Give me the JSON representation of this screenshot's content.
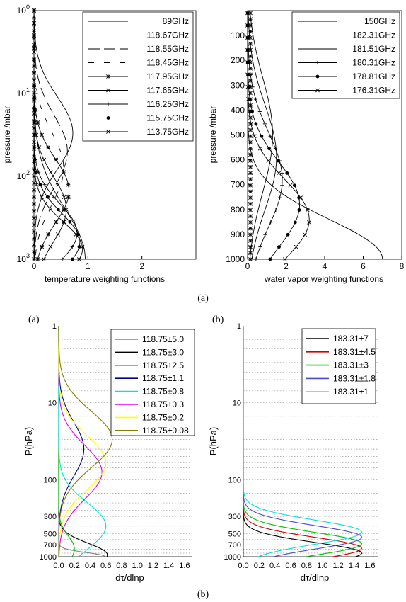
{
  "captions": {
    "top": "(a)",
    "bottom": "(b)",
    "panel_c": "(a)",
    "panel_d": "(b)"
  },
  "chart_data": [
    {
      "id": "A",
      "type": "line",
      "xlabel": "temperature weighting functions",
      "ylabel": "pressure /mbar",
      "xlim": [
        0,
        3
      ],
      "ylim": [
        1,
        1000
      ],
      "yscale": "log",
      "yinverted": true,
      "xticks": [
        "0",
        "1",
        "2"
      ],
      "yticks": [
        {
          "v": 1,
          "b": "10",
          "e": "0"
        },
        {
          "v": 10,
          "b": "10",
          "e": "1"
        },
        {
          "v": 100,
          "b": "10",
          "e": "2"
        },
        {
          "v": 1000,
          "b": "10",
          "e": "3"
        }
      ],
      "legend_position": "top-right",
      "grid": false,
      "series": [
        {
          "name": "89GHz",
          "marker": "none",
          "dash": "",
          "peak_p": 1000,
          "peak_v": 0.95,
          "width": 1.4
        },
        {
          "name": "118.67GHz",
          "marker": "none",
          "dash": "",
          "peak_p": 30,
          "peak_v": 0.72,
          "width": 1.0
        },
        {
          "name": "118.55GHz",
          "marker": "none",
          "dash": "16,6",
          "peak_p": 50,
          "peak_v": 0.62,
          "width": 1.0
        },
        {
          "name": "118.45GHz",
          "marker": "none",
          "dash": "8,14",
          "peak_p": 80,
          "peak_v": 0.55,
          "width": 1.0
        },
        {
          "name": "117.95GHz",
          "marker": "asterisk",
          "dash": "",
          "peak_p": 150,
          "peak_v": 0.65,
          "width": 0.9
        },
        {
          "name": "117.65GHz",
          "marker": "x",
          "dash": "",
          "peak_p": 250,
          "peak_v": 0.6,
          "width": 0.9
        },
        {
          "name": "116.25GHz",
          "marker": "plus",
          "dash": "",
          "peak_p": 480,
          "peak_v": 0.8,
          "width": 0.8
        },
        {
          "name": "115.75GHz",
          "marker": "dot",
          "dash": "",
          "peak_p": 620,
          "peak_v": 0.85,
          "width": 0.8
        },
        {
          "name": "113.75GHz",
          "marker": "x",
          "dash": "",
          "peak_p": 750,
          "peak_v": 0.9,
          "width": 0.75
        }
      ]
    },
    {
      "id": "B",
      "type": "line",
      "xlabel": "water vapor weighting functions",
      "ylabel": "pressure /mbar",
      "xlim": [
        0,
        8
      ],
      "ylim": [
        0,
        1000
      ],
      "yscale": "linear",
      "yinverted": true,
      "xticks": [
        "0",
        "2",
        "4",
        "6",
        "8"
      ],
      "yticks": [
        "100",
        "200",
        "300",
        "400",
        "500",
        "600",
        "700",
        "800",
        "900",
        "1000"
      ],
      "legend_position": "top-right",
      "grid": false,
      "series": [
        {
          "name": "150GHz",
          "marker": "none",
          "peak_p": 1000,
          "peak_v": 7.0,
          "width": 160
        },
        {
          "name": "182.31GHz",
          "marker": "none",
          "peak_p": 500,
          "peak_v": 1.3,
          "width": 230
        },
        {
          "name": "181.51GHz",
          "marker": "none",
          "peak_p": 590,
          "peak_v": 1.5,
          "width": 210
        },
        {
          "name": "180.31GHz",
          "marker": "plus",
          "peak_p": 680,
          "peak_v": 1.8,
          "width": 190
        },
        {
          "name": "178.81GHz",
          "marker": "dot",
          "peak_p": 780,
          "peak_v": 2.7,
          "width": 170
        },
        {
          "name": "176.31GHz",
          "marker": "x",
          "peak_p": 840,
          "peak_v": 3.2,
          "width": 160
        }
      ]
    },
    {
      "id": "C",
      "type": "line",
      "xlabel": "dτ/dlnp",
      "ylabel": "P(hPa)",
      "xlim": [
        0,
        1.7
      ],
      "ylim": [
        1,
        1000
      ],
      "yscale": "log",
      "yinverted": true,
      "xticks": [
        "0.0",
        "0.2",
        "0.4",
        "0.6",
        "0.8",
        "1.0",
        "1.2",
        "1.4",
        "1.6"
      ],
      "yticks": [
        "1",
        "10",
        "100",
        "300",
        "500",
        "700",
        "1000"
      ],
      "legend_position": "top-right",
      "grid": "dotted horizontal",
      "series": [
        {
          "name": "118.75±5.0",
          "color": "#808080",
          "peak_p": 1000,
          "peak_v": 0.6,
          "width": 0.12
        },
        {
          "name": "118.75±3.0",
          "color": "#000000",
          "peak_p": 950,
          "peak_v": 0.62,
          "width": 0.35
        },
        {
          "name": "118.75±2.5",
          "color": "#00c000",
          "peak_p": 800,
          "peak_v": 0.2,
          "width": 0.4
        },
        {
          "name": "118.75±1.1",
          "color": "#00008b",
          "peak_p": 40,
          "peak_v": 0.32,
          "width": 0.8
        },
        {
          "name": "118.75±0.8",
          "color": "#00e0e0",
          "peak_p": 400,
          "peak_v": 0.6,
          "width": 0.7
        },
        {
          "name": "118.75±0.3",
          "color": "#e000e0",
          "peak_p": 80,
          "peak_v": 0.55,
          "width": 0.8
        },
        {
          "name": "118.75±0.2",
          "color": "#ffff00",
          "peak_p": 60,
          "peak_v": 0.6,
          "width": 0.8
        },
        {
          "name": "118.75±0.08",
          "color": "#808000",
          "peak_p": 30,
          "peak_v": 0.68,
          "width": 0.85
        }
      ]
    },
    {
      "id": "D",
      "type": "line",
      "xlabel": "dτ/dlnp",
      "ylabel": "P(hPa)",
      "xlim": [
        0,
        1.7
      ],
      "ylim": [
        1,
        1000
      ],
      "yscale": "log",
      "yinverted": true,
      "xticks": [
        "0.0",
        "0.2",
        "0.4",
        "0.6",
        "0.8",
        "1.0",
        "1.2",
        "1.4",
        "1.6"
      ],
      "yticks": [
        "1",
        "10",
        "100",
        "300",
        "500",
        "700",
        "1000"
      ],
      "legend_position": "top-right",
      "grid": "dotted horizontal",
      "series": [
        {
          "name": "183.31±7",
          "color": "#000000",
          "peak_p": 900,
          "peak_v": 1.5,
          "width": 0.32
        },
        {
          "name": "183.31±4.5",
          "color": "#d00000",
          "peak_p": 780,
          "peak_v": 1.5,
          "width": 0.33
        },
        {
          "name": "183.31±3",
          "color": "#00c000",
          "peak_p": 680,
          "peak_v": 1.5,
          "width": 0.34
        },
        {
          "name": "183.31±1.8",
          "color": "#4b4bc8",
          "peak_p": 560,
          "peak_v": 1.5,
          "width": 0.35
        },
        {
          "name": "183.31±1",
          "color": "#00e0e0",
          "peak_p": 480,
          "peak_v": 1.5,
          "width": 0.36
        }
      ]
    }
  ]
}
